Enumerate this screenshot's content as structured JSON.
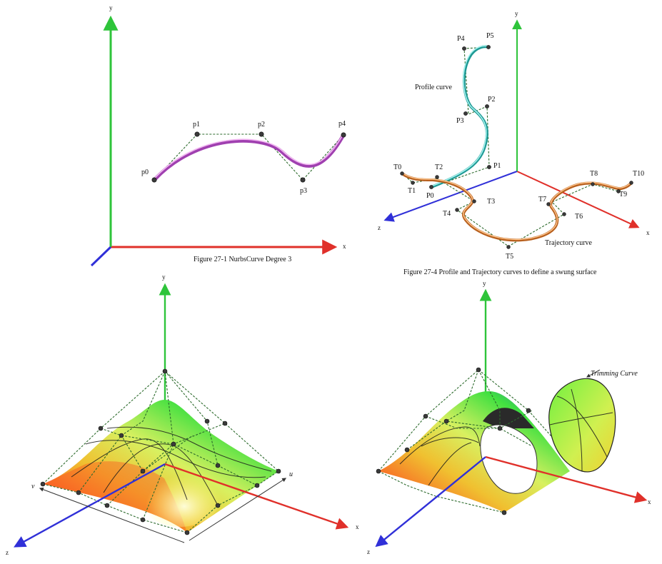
{
  "axes": {
    "x": "x",
    "y": "y",
    "z": "z",
    "u": "u",
    "v": "v"
  },
  "fig1": {
    "caption": "Figure 27-1 NurbsCurve Degree 3",
    "points": [
      "p0",
      "p1",
      "p2",
      "p3",
      "p4"
    ]
  },
  "fig4": {
    "caption": "Figure 27-4 Profile and Trajectory curves to define a swung surface",
    "profile_label": "Profile curve",
    "trajectory_label": "Trajectory curve",
    "profile_points": [
      "P0",
      "P1",
      "P2",
      "P3",
      "P4",
      "P5"
    ],
    "trajectory_points": [
      "T0",
      "T1",
      "T2",
      "T3",
      "T4",
      "T5",
      "T6",
      "T7",
      "T8",
      "T9",
      "T10"
    ]
  },
  "fig_trim": {
    "label": "Trimming Curve"
  },
  "colors": {
    "x_axis": "#e0302a",
    "y_axis": "#2ec43a",
    "z_axis": "#3030d8",
    "nurbs_curve": "#c85ad0",
    "profile_curve": "#40d0c8",
    "trajectory_curve": "#e08a30",
    "control_polygon": "#2d6b2d"
  }
}
